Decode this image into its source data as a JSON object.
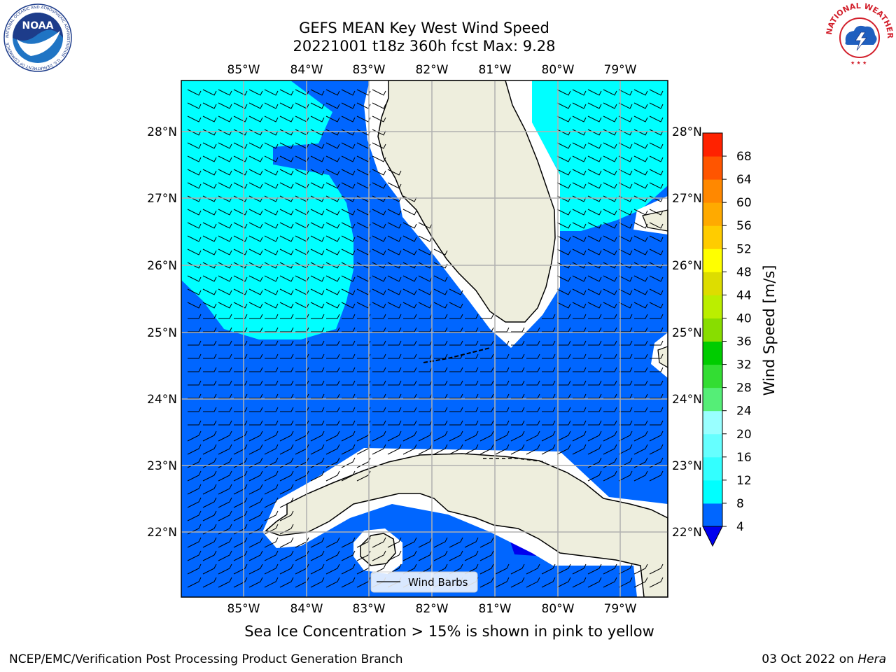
{
  "title_line1": "GEFS MEAN Key West Wind Speed",
  "title_line2": "20221001 t18z 360h fcst   Max: 9.28",
  "lon_ticks": [
    "85°W",
    "84°W",
    "83°W",
    "82°W",
    "81°W",
    "80°W",
    "79°W"
  ],
  "lat_ticks": [
    "28°N",
    "27°N",
    "26°N",
    "25°N",
    "24°N",
    "23°N",
    "22°N"
  ],
  "colorbar": {
    "label": "Wind Speed [m/s]",
    "ticks": [
      "4",
      "8",
      "12",
      "16",
      "20",
      "24",
      "28",
      "32",
      "36",
      "40",
      "44",
      "48",
      "52",
      "56",
      "60",
      "64",
      "68"
    ],
    "colors": [
      "#0066ff",
      "#00ffff",
      "#33ffff",
      "#66ffff",
      "#99ffff",
      "#55ee77",
      "#33dd33",
      "#00cc00",
      "#88dd00",
      "#bbee00",
      "#dddd00",
      "#ffff00",
      "#ffcc00",
      "#ffaa00",
      "#ff8800",
      "#ff5500",
      "#ff2200",
      "#ff0000"
    ],
    "extend_color": "#0000ee"
  },
  "legend_label": "Wind Barbs",
  "caption": "Sea Ice Concentration > 15% is shown in pink to yellow",
  "credit_left": "NCEP/EMC/Verification Post Processing Product Generation Branch",
  "credit_date": "03 Oct 2022 on ",
  "credit_host": "Hera",
  "noaa_logo_text": "NOAA",
  "noaa_ring_text": "NATIONAL OCEANIC AND ATMOSPHERIC ADMINISTRATION · U.S. DEPARTMENT OF COMMERCE",
  "nws_ring_text": "NATIONAL WEATHER SERVICE",
  "colors": {
    "ocean_medium": "#0066ff",
    "ocean_light": "#00ffff",
    "ocean_dark": "#0000ee",
    "land": "#eeeedd",
    "grid": "#b0b0b0"
  }
}
